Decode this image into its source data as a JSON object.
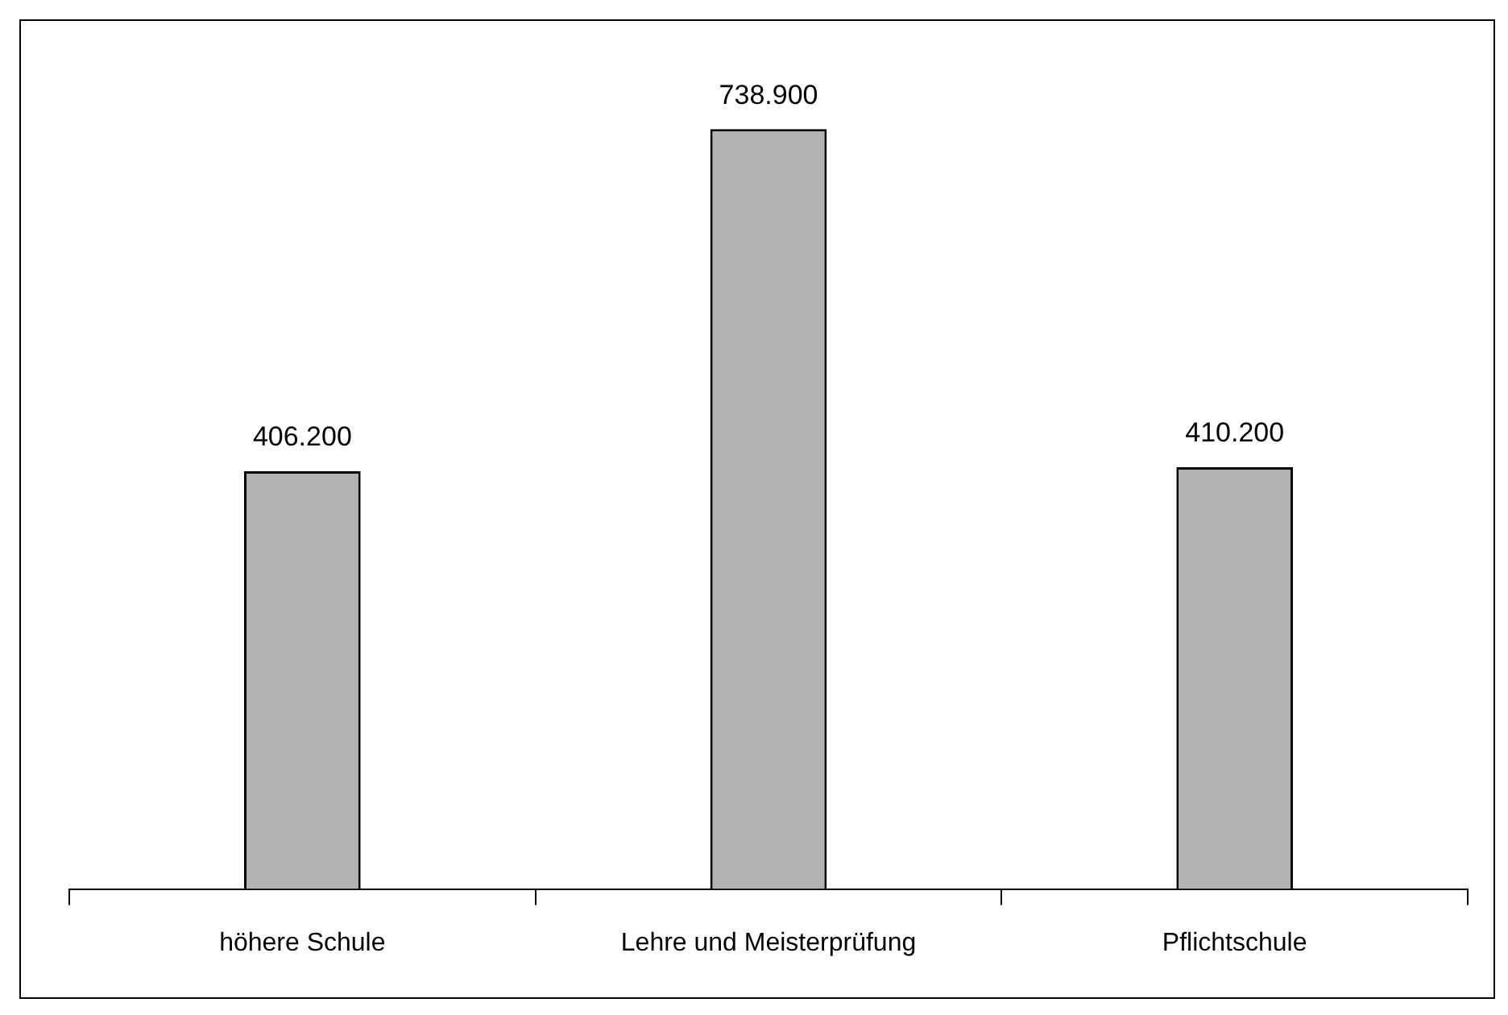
{
  "chart_data": {
    "type": "bar",
    "categories": [
      "höhere Schule",
      "Lehre und Meisterprüfung",
      "Pflichtschule"
    ],
    "values": [
      406200,
      738900,
      410200
    ],
    "value_labels": [
      "406.200",
      "738.900",
      "410.200"
    ],
    "color": "#b2b2b2",
    "grid": false,
    "legend": false
  }
}
